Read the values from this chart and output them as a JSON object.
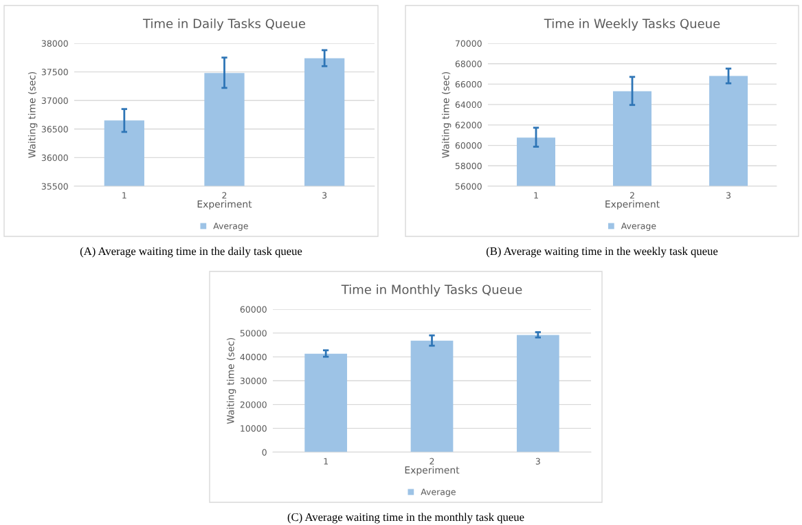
{
  "chart_data": [
    {
      "type": "bar",
      "title": "Time in Daily Tasks Queue",
      "xlabel": "Experiment",
      "ylabel": "Waiting time (sec)",
      "categories": [
        "1",
        "2",
        "3"
      ],
      "series": [
        {
          "name": "Average",
          "color": "#9dc3e6",
          "values": [
            36650,
            37480,
            37740
          ],
          "errors": [
            [
              36450,
              36850
            ],
            [
              37220,
              37750
            ],
            [
              37600,
              37880
            ]
          ]
        }
      ],
      "ylim": [
        35500,
        38000
      ],
      "yticks": [
        35500,
        36000,
        36500,
        37000,
        37500,
        38000
      ],
      "grid": "y",
      "legend": "bottom",
      "annotations": [
        "(A) Average waiting time in the daily task queue"
      ]
    },
    {
      "type": "bar",
      "title": "Time in Weekly Tasks Queue",
      "xlabel": "Experiment",
      "ylabel": "Waiting time (sec)",
      "categories": [
        "1",
        "2",
        "3"
      ],
      "series": [
        {
          "name": "Average",
          "color": "#9dc3e6",
          "values": [
            60770,
            65300,
            66800
          ],
          "errors": [
            [
              59870,
              61730
            ],
            [
              63960,
              66710
            ],
            [
              66080,
              67520
            ]
          ]
        }
      ],
      "ylim": [
        56000,
        70000
      ],
      "yticks": [
        56000,
        58000,
        60000,
        62000,
        64000,
        66000,
        68000,
        70000
      ],
      "grid": "y",
      "legend": "bottom",
      "annotations": [
        "(B) Average waiting time in the weekly task queue"
      ]
    },
    {
      "type": "bar",
      "title": "Time in Monthly Tasks Queue",
      "xlabel": "Experiment",
      "ylabel": "Waiting time (sec)",
      "categories": [
        "1",
        "2",
        "3"
      ],
      "series": [
        {
          "name": "Average",
          "color": "#9dc3e6",
          "values": [
            41300,
            46800,
            49200
          ],
          "errors": [
            [
              40060,
              42760
            ],
            [
              44690,
              49020
            ],
            [
              48150,
              50370
            ]
          ]
        }
      ],
      "ylim": [
        0,
        60000
      ],
      "yticks": [
        0,
        10000,
        20000,
        30000,
        40000,
        50000,
        60000
      ],
      "grid": "y",
      "legend": "bottom",
      "annotations": [
        "(C) Average waiting time in the monthly task queue"
      ]
    }
  ]
}
